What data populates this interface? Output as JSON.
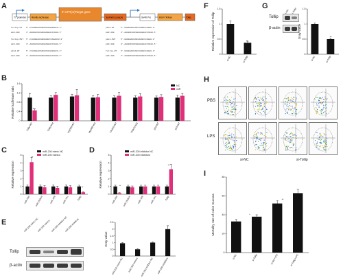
{
  "panels": {
    "A": "A",
    "B": "B",
    "C": "C",
    "D": "D",
    "E": "E",
    "F": "F",
    "G": "G",
    "H": "H",
    "I": "I"
  },
  "panelA": {
    "construct": [
      "T7 promoter",
      "Renilla luciferase",
      "3'-UTR(or)Target gene",
      "Synthetic poly(A)",
      "SV40 Pro",
      "HSV-TK/Kan",
      "Tollip"
    ],
    "seq_left": [
      "5'-CCAUGGAUCUGUUCCUGGGAUCU-3'",
      "3'-AGUGUCUUCUGGAAGUACCCUAU-5'",
      "5'-CCAUGGAUCUGUGUGCCCAGAUCU-3'",
      "3'-AGUGUCUUCUGGAAGUACCCUAU-5'",
      "5'-CCAUGGAUCUGUUCCUGGGAUCU-3'",
      "3'-AGUGUCUUCUGGAAGUACCCUAU-5'"
    ],
    "seq_right": [
      "5'-GUGGGAUCUGCCAUGGCCAGAU-3'",
      "3'-AGUGUCUUCUGGAAGUACCCUAU-5'",
      "5'-GUGGGAUCUGCAGUGCCCAGAU-3'",
      "3'-AGUGUCUUCUGGAAGUACCCUAU-5'",
      "5'-GUGGGAUCUGCCAUGGCCAGAU-3'",
      "3'-AGUGUCUUCUGGAAGUACCCUAU-5'"
    ],
    "seq_left_tags": [
      "Tollip-WT",
      "miR-200",
      "Tollip-MUT",
      "miR-200",
      "pGL3-WT",
      "miR-200"
    ],
    "seq_right_tags": [
      "pGL3-WT",
      "miR-200",
      "pGL3-MUT",
      "miR-200",
      "Tollip-WT",
      "miR-200"
    ]
  },
  "chart_data": [
    {
      "panel": "B",
      "type": "bar",
      "ylabel": "Relative luciferase ratio",
      "ylim": [
        0,
        1.6
      ],
      "categories": [
        "Tollip-WT",
        "Tollip-Mut",
        "MyD88-WT",
        "MyD88-Mut",
        "TRAF6-WT",
        "TRAF6-Mut",
        "p50-WT",
        "p65-WT"
      ],
      "series": [
        {
          "name": "NC",
          "color": "#111111",
          "values": [
            1.0,
            1.0,
            1.05,
            1.0,
            1.0,
            1.0,
            1.0,
            1.0
          ],
          "errors": [
            0.18,
            0.08,
            0.1,
            0.09,
            0.08,
            0.08,
            0.07,
            0.1
          ]
        },
        {
          "name": "miR",
          "color": "#e0307a",
          "values": [
            0.45,
            1.12,
            1.1,
            1.02,
            1.08,
            1.05,
            1.03,
            1.08
          ],
          "errors": [
            0.06,
            0.1,
            0.25,
            0.12,
            0.15,
            0.12,
            0.1,
            0.1
          ]
        }
      ],
      "annotations": [
        "**"
      ]
    },
    {
      "panel": "C",
      "type": "bar",
      "ylabel": "Relative expression",
      "ylim": [
        0,
        5
      ],
      "categories": [
        "miR-200",
        "miR-200b/c",
        "miR-429",
        "miR-141",
        "Tollip"
      ],
      "series": [
        {
          "name": "miR-200 mimic NC",
          "color": "#111111",
          "values": [
            1.0,
            1.0,
            1.0,
            1.0,
            1.0
          ],
          "errors": [
            0.2,
            0.2,
            0.2,
            0.2,
            0.15
          ]
        },
        {
          "name": "miR-200 mimics",
          "color": "#e0307a",
          "values": [
            4.1,
            0.9,
            0.8,
            0.9,
            0.25
          ],
          "errors": [
            0.6,
            0.2,
            0.2,
            0.2,
            0.05
          ]
        }
      ],
      "annotations": [
        "**",
        "**"
      ]
    },
    {
      "panel": "D",
      "type": "bar",
      "ylabel": "Relative expression",
      "ylim": [
        0,
        5
      ],
      "categories": [
        "miR-200",
        "miR-200b/c",
        "miR-429",
        "miR-141",
        "Tollip"
      ],
      "series": [
        {
          "name": "miR-200 inhibitor NC",
          "color": "#111111",
          "values": [
            1.0,
            1.0,
            1.0,
            1.0,
            1.0
          ],
          "errors": [
            0.15,
            0.15,
            0.15,
            0.15,
            0.15
          ]
        },
        {
          "name": "miR-200 inhibitors",
          "color": "#e0307a",
          "values": [
            0.15,
            0.9,
            1.0,
            1.0,
            3.2
          ],
          "errors": [
            0.05,
            0.15,
            0.15,
            0.15,
            0.6
          ]
        }
      ],
      "annotations": [
        "**",
        "**"
      ]
    },
    {
      "panel": "E",
      "type": "bar",
      "ylabel": "Gray value",
      "ylim": [
        0,
        2.5
      ],
      "categories": [
        "miR-200 mimic NC",
        "miR-200 mimics",
        "miR-200 inhibitor NC",
        "miR-200 inhibitors"
      ],
      "series": [
        {
          "name": "Tollip",
          "color": "#111111",
          "values": [
            0.95,
            0.5,
            1.0,
            2.0
          ],
          "errors": [
            0.05,
            0.05,
            0.05,
            0.25
          ]
        }
      ],
      "annotations": []
    },
    {
      "panel": "F",
      "type": "bar",
      "ylabel": "Relative expression of Tollip",
      "ylim": [
        0,
        1.5
      ],
      "categories": [
        "si-NC",
        "si-Tollip"
      ],
      "series": [
        {
          "name": "Tollip",
          "color": "#111111",
          "values": [
            1.0,
            0.38
          ],
          "errors": [
            0.1,
            0.05
          ]
        }
      ],
      "annotations": [
        "**"
      ]
    },
    {
      "panel": "G",
      "type": "bar",
      "ylabel": "Gray value",
      "ylim": [
        0,
        1.5
      ],
      "categories": [
        "si-NC",
        "si-Tollip"
      ],
      "series": [
        {
          "name": "Tollip",
          "color": "#111111",
          "values": [
            1.0,
            0.5
          ],
          "errors": [
            0.03,
            0.03
          ]
        }
      ],
      "annotations": [
        "**"
      ]
    },
    {
      "panel": "I",
      "type": "bar",
      "ylabel": "Mortality rate of colon mucosa",
      "ylim": [
        0,
        80
      ],
      "categories": [
        "si-NC",
        "si-Tollip",
        "si-NC+LPS",
        "si-Tollip+LPS"
      ],
      "series": [
        {
          "name": "Mortality",
          "color": "#111111",
          "values": [
            33,
            38,
            52,
            63
          ],
          "errors": [
            2,
            2,
            3,
            4
          ]
        }
      ],
      "annotations": [
        "*",
        "**"
      ]
    }
  ],
  "blotE": {
    "label": "Tollip",
    "loading": "β-actin",
    "lanes": [
      "miR-200 mimic NC",
      "miR-200 mimics",
      "miR-200 inhibitor NC",
      "miR-200 inhibitors"
    ]
  },
  "blotG": {
    "label": "Tollip",
    "loading": "β-actin",
    "lanes": [
      "si-NC",
      "si-Tollip"
    ]
  },
  "panelH": {
    "rows": [
      "PBS",
      "LPS"
    ],
    "cols_bottom": [
      "si-NC",
      "si-Tollip"
    ]
  }
}
